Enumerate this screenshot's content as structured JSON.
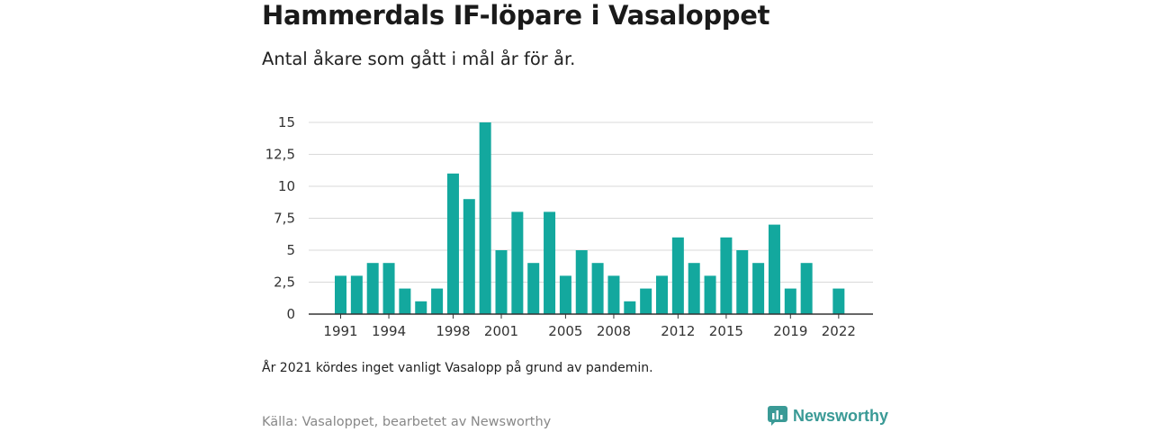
{
  "header": {
    "title": "Hammerdals IF-löpare i Vasaloppet",
    "subtitle": "Antal åkare som gått i mål år för år."
  },
  "footer": {
    "note": "År 2021 kördes inget vanligt Vasalopp på grund av pandemin.",
    "source": "Källa: Vasaloppet, bearbetet av Newsworthy",
    "brand": "Newsworthy"
  },
  "colors": {
    "bar": "#13a89e",
    "brand": "#3a9a96",
    "grid": "#d9d9d9",
    "axis": "#333333"
  },
  "icons": {
    "brand_logo": "newsworthy-logo-icon"
  },
  "chart_data": {
    "type": "bar",
    "title": "",
    "xlabel": "",
    "ylabel": "",
    "ylim": [
      0,
      15
    ],
    "yticks": [
      0,
      2.5,
      5,
      7.5,
      10,
      12.5,
      15
    ],
    "ytick_labels": [
      "0",
      "2,5",
      "5",
      "7,5",
      "10",
      "12,5",
      "15"
    ],
    "xtick_labels": [
      "1991",
      "1994",
      "1998",
      "2001",
      "2005",
      "2008",
      "2012",
      "2015",
      "2019",
      "2022"
    ],
    "categories": [
      "1991",
      "1992",
      "1993",
      "1994",
      "1995",
      "1996",
      "1997",
      "1998",
      "1999",
      "2000",
      "2001",
      "2002",
      "2003",
      "2004",
      "2005",
      "2006",
      "2007",
      "2008",
      "2009",
      "2010",
      "2011",
      "2012",
      "2013",
      "2014",
      "2015",
      "2016",
      "2017",
      "2018",
      "2019",
      "2020",
      "2021",
      "2022"
    ],
    "values": [
      3,
      3,
      4,
      4,
      2,
      1,
      2,
      11,
      9,
      15,
      5,
      8,
      4,
      8,
      3,
      5,
      4,
      3,
      1,
      2,
      3,
      6,
      4,
      3,
      6,
      5,
      4,
      7,
      2,
      4,
      null,
      2
    ],
    "grid": true,
    "legend": "none"
  }
}
